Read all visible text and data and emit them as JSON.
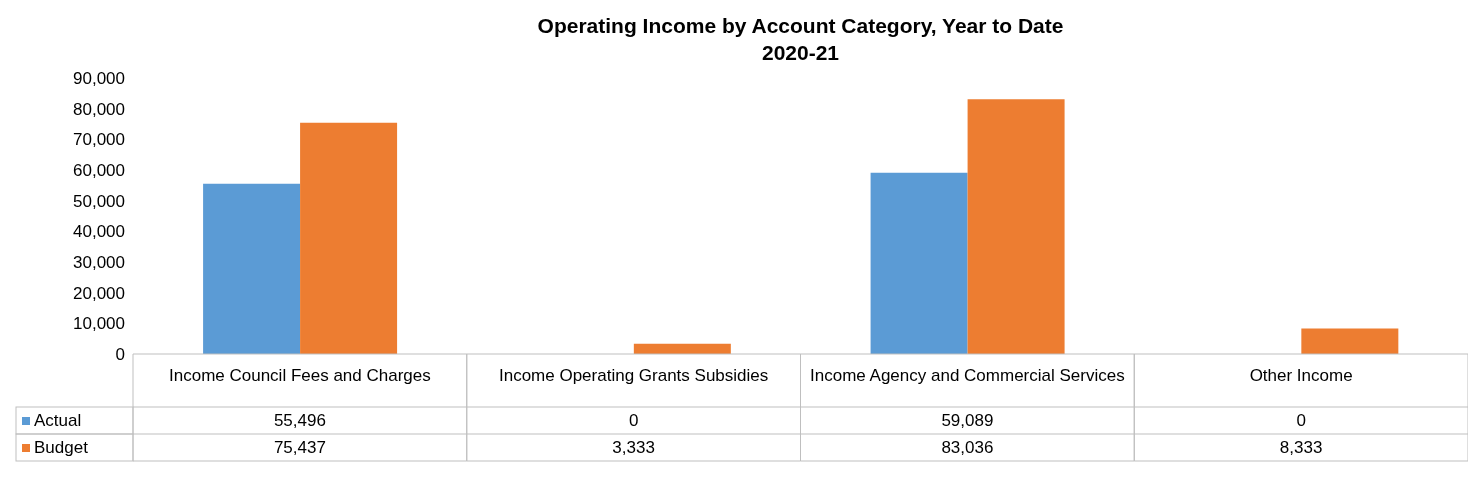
{
  "chart_data": {
    "type": "bar",
    "title": "Operating Income by Account Category, Year to Date",
    "subtitle": "2020-21",
    "categories": [
      "Income Council Fees and Charges",
      "Income Operating Grants Subsidies",
      "Income Agency and Commercial Services",
      "Other Income"
    ],
    "series": [
      {
        "name": "Actual",
        "color": "#5b9bd5",
        "values": [
          55496,
          0,
          59089,
          0
        ],
        "value_labels": [
          "55,496",
          "0",
          "59,089",
          "0"
        ]
      },
      {
        "name": "Budget",
        "color": "#ed7d31",
        "values": [
          75437,
          3333,
          83036,
          8333
        ],
        "value_labels": [
          "75,437",
          "3,333",
          "83,036",
          "8,333"
        ]
      }
    ],
    "ylim": [
      0,
      90000
    ],
    "yticks": [
      {
        "value": 0,
        "label": "0"
      },
      {
        "value": 10000,
        "label": "10,000"
      },
      {
        "value": 20000,
        "label": "20,000"
      },
      {
        "value": 30000,
        "label": "30,000"
      },
      {
        "value": 40000,
        "label": "40,000"
      },
      {
        "value": 50000,
        "label": "50,000"
      },
      {
        "value": 60000,
        "label": "60,000"
      },
      {
        "value": 70000,
        "label": "70,000"
      },
      {
        "value": 80000,
        "label": "80,000"
      },
      {
        "value": 90000,
        "label": "90,000"
      }
    ],
    "grid": false,
    "legend": "bottom"
  }
}
